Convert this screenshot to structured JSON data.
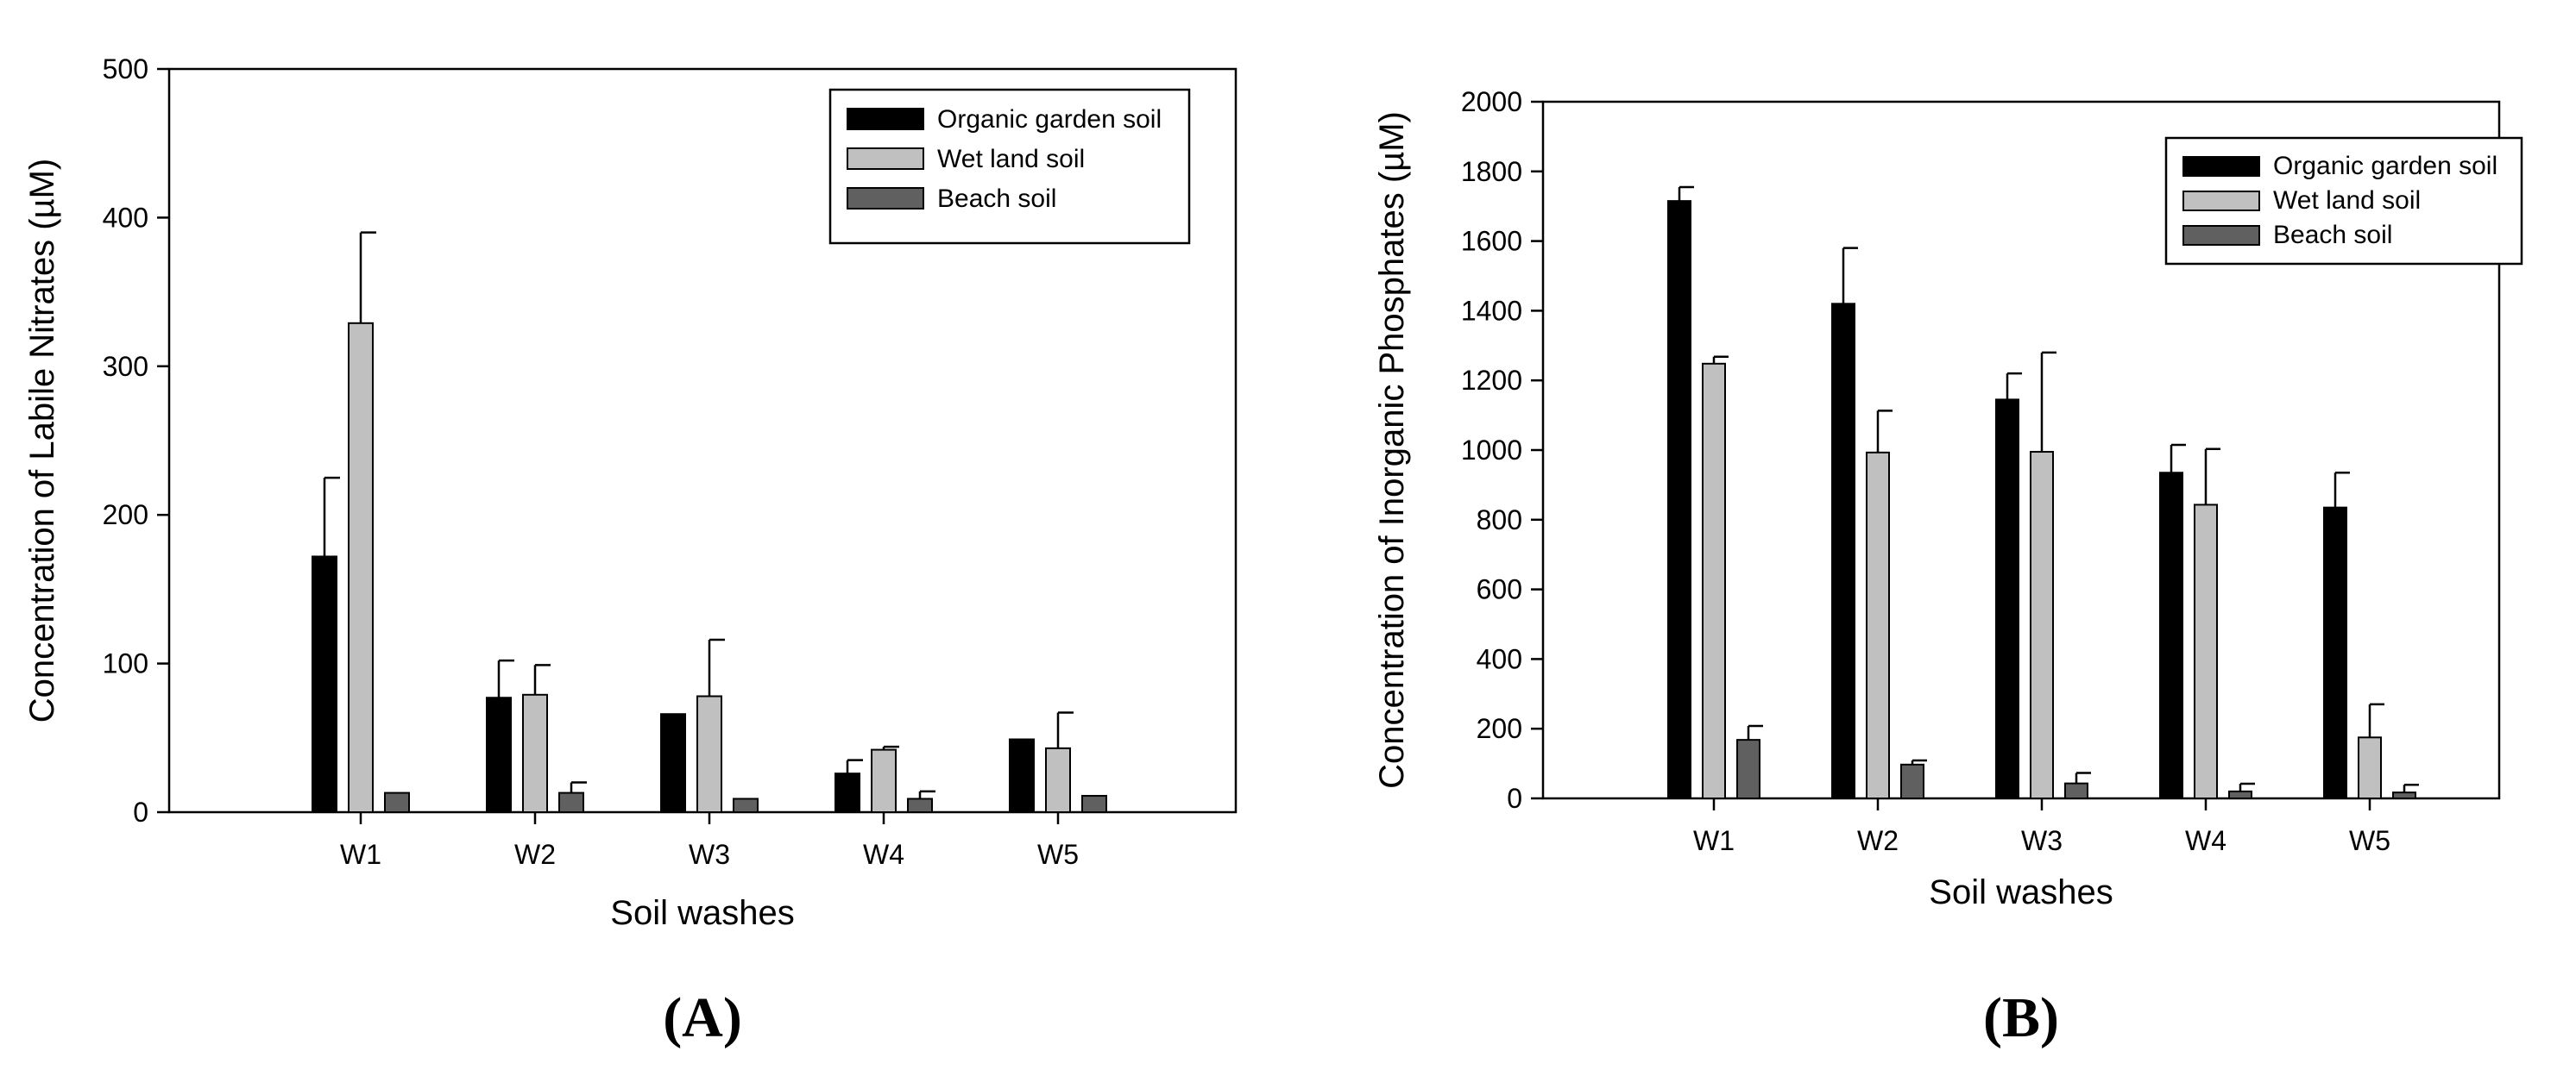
{
  "chart_data": [
    {
      "type": "bar",
      "panel_label": "(A)",
      "xlabel": "Soil washes",
      "ylabel": "Concentration of Labile Nitrates (µM)",
      "ylim": [
        0,
        500
      ],
      "yticks": [
        "0",
        "100",
        "200",
        "300",
        "400",
        "500"
      ],
      "categories": [
        "W1",
        "W2",
        "W3",
        "W4",
        "W5"
      ],
      "legend_position": "top-right",
      "series": [
        {
          "name": "Organic garden soil",
          "color": "#000000",
          "values": [
            172,
            77,
            66,
            26,
            49
          ],
          "errors": [
            53,
            25,
            0,
            9,
            0
          ]
        },
        {
          "name": "Wet land soil",
          "color": "#c0c0c0",
          "values": [
            329,
            79,
            78,
            42,
            43
          ],
          "errors": [
            61,
            20,
            38,
            2,
            24
          ]
        },
        {
          "name": "Beach soil",
          "color": "#606060",
          "values": [
            13,
            13,
            9,
            9,
            11
          ],
          "errors": [
            0,
            7,
            0,
            5,
            0
          ]
        }
      ]
    },
    {
      "type": "bar",
      "panel_label": "(B)",
      "xlabel": "Soil washes",
      "ylabel": "Concentration of Inorganic Phosphates (µM)",
      "ylim": [
        0,
        2000
      ],
      "yticks": [
        "0",
        "200",
        "400",
        "600",
        "800",
        "1000",
        "1200",
        "1400",
        "1600",
        "1800",
        "2000"
      ],
      "categories": [
        "W1",
        "W2",
        "W3",
        "W4",
        "W5"
      ],
      "legend_position": "top-right",
      "series": [
        {
          "name": "Organic garden soil",
          "color": "#000000",
          "values": [
            1715,
            1420,
            1145,
            935,
            835
          ],
          "errors": [
            40,
            160,
            75,
            80,
            100
          ]
        },
        {
          "name": "Wet land soil",
          "color": "#c0c0c0",
          "values": [
            1248,
            993,
            995,
            843,
            175
          ],
          "errors": [
            20,
            120,
            285,
            160,
            95
          ]
        },
        {
          "name": "Beach soil",
          "color": "#606060",
          "values": [
            168,
            97,
            43,
            20,
            17
          ],
          "errors": [
            40,
            12,
            30,
            22,
            22
          ]
        }
      ]
    }
  ]
}
